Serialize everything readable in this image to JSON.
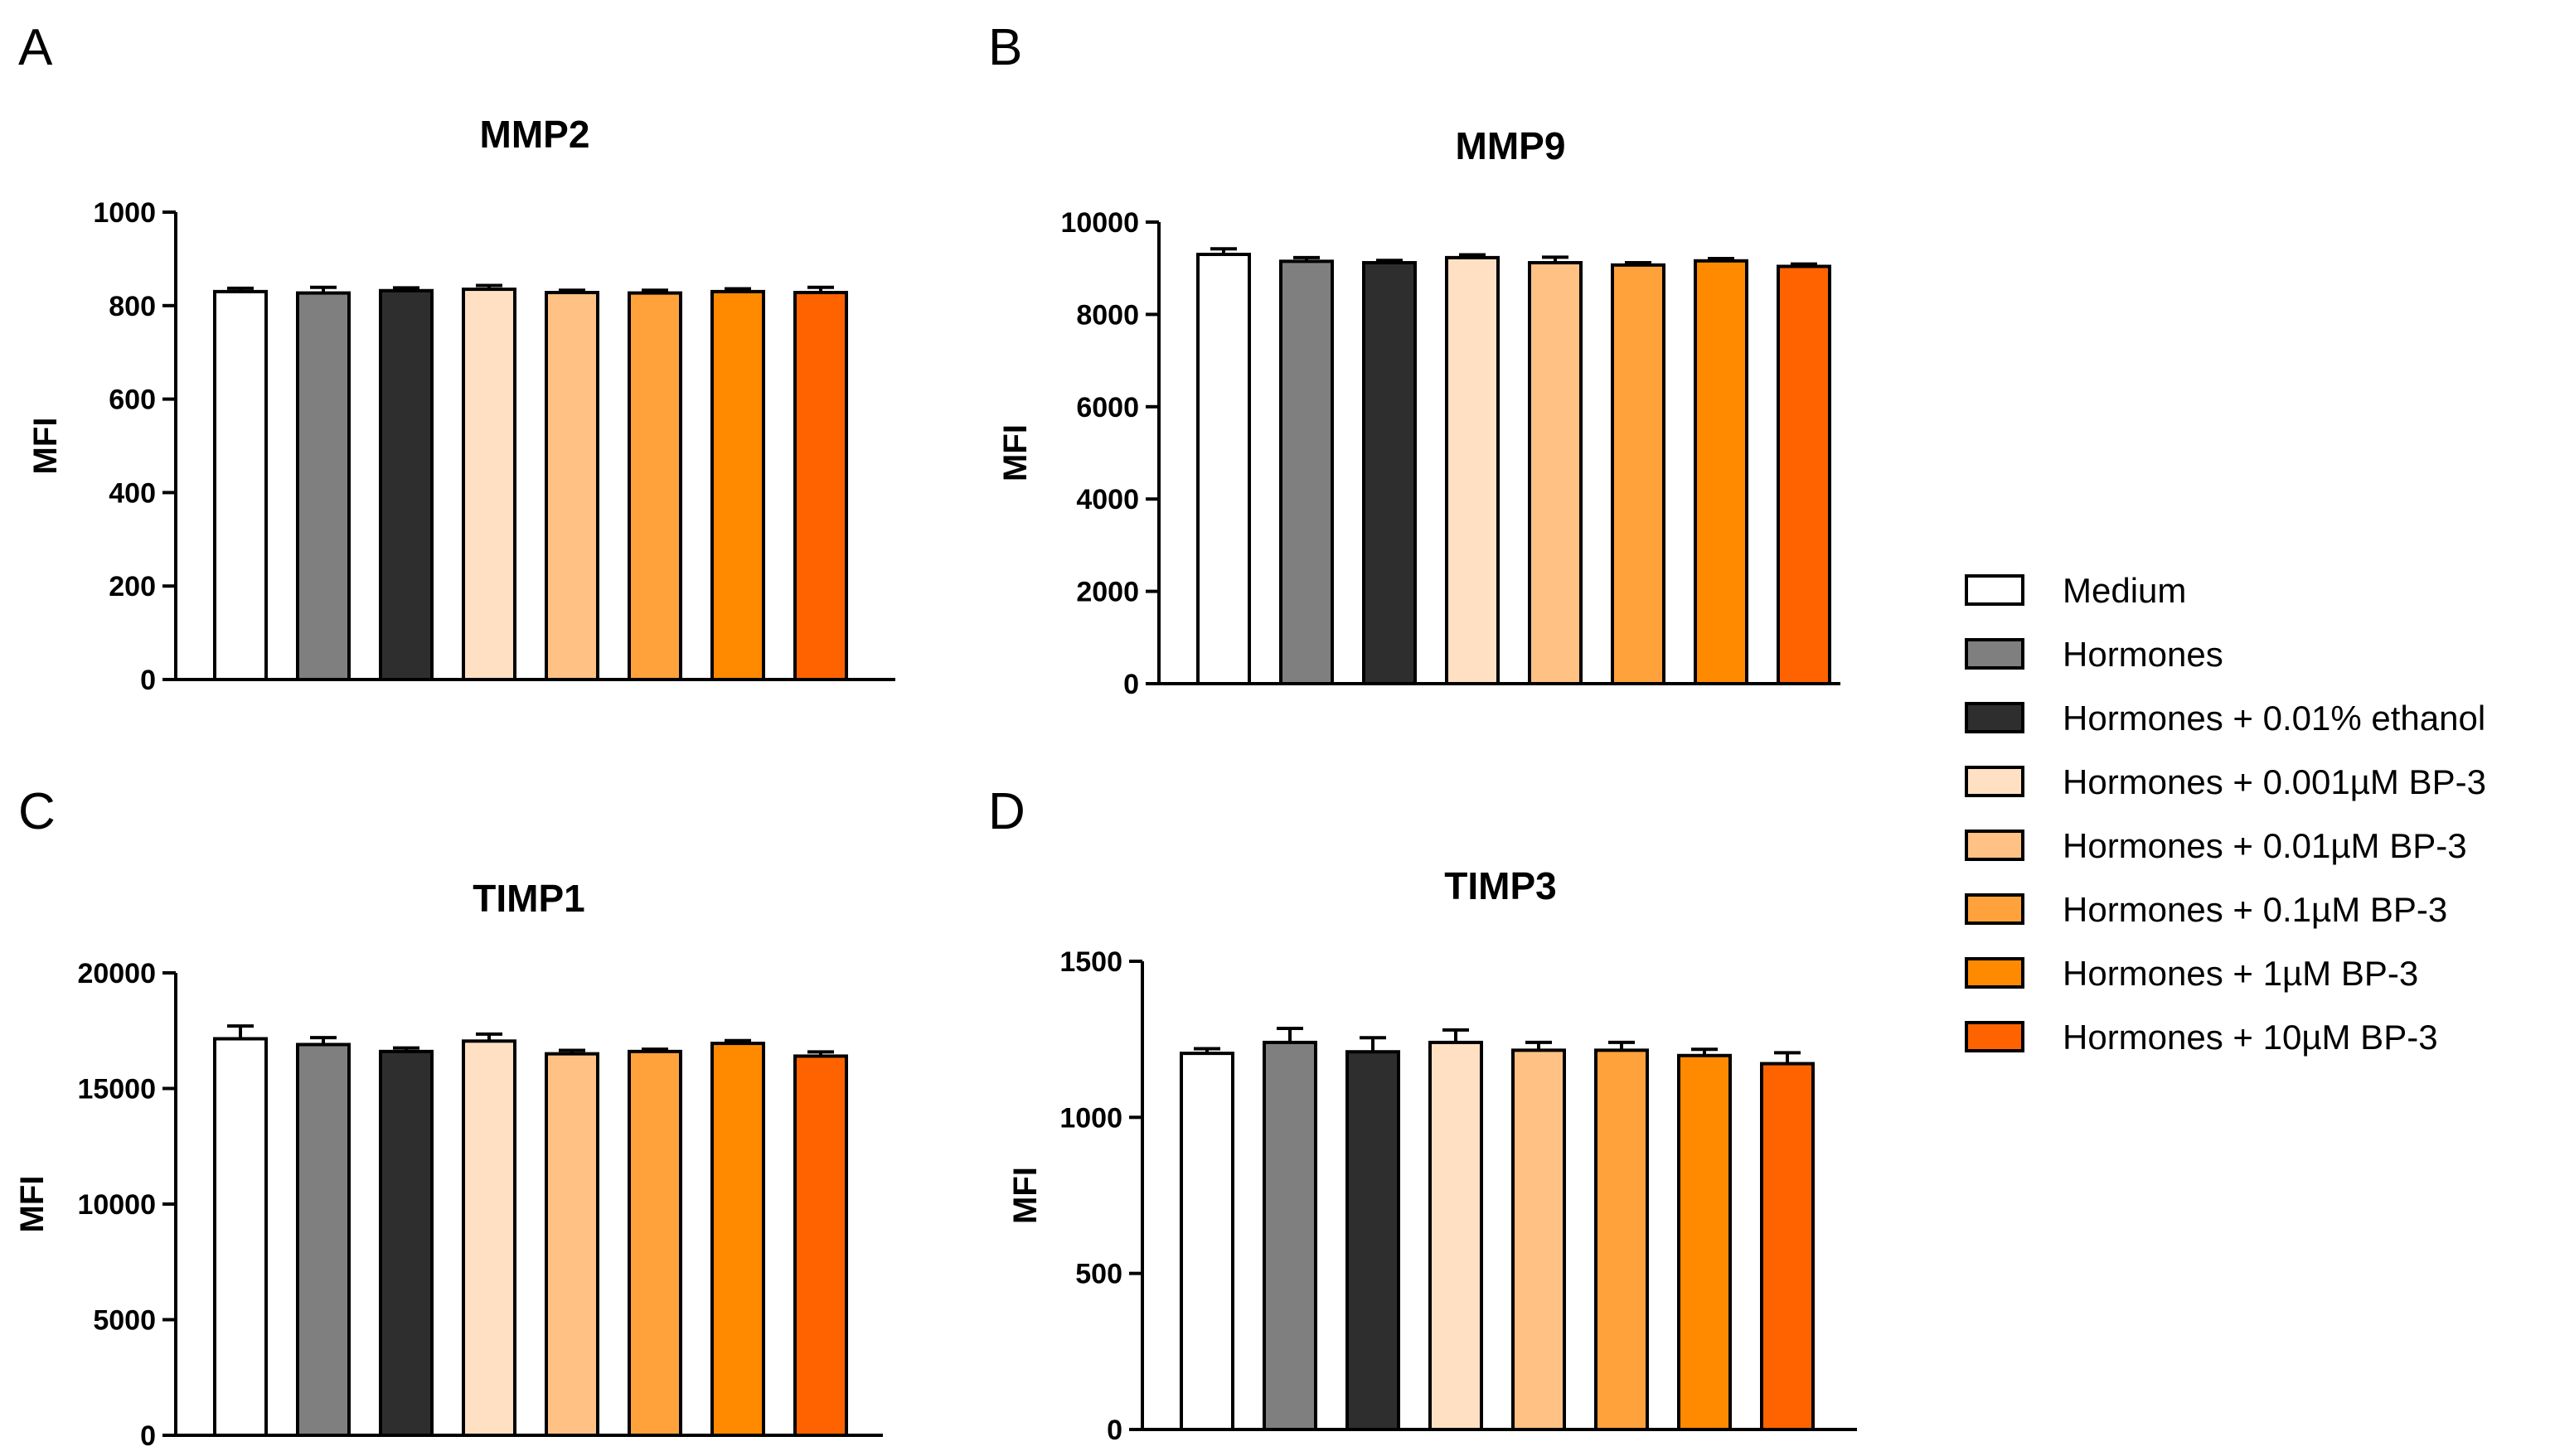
{
  "legend": {
    "series": [
      {
        "label": "Medium",
        "color": "#FFFFFF"
      },
      {
        "label": "Hormones",
        "color": "#7F7F7F"
      },
      {
        "label": "Hormones + 0.01% ethanol",
        "color": "#2E2E2E"
      },
      {
        "label": "Hormones + 0.001µM BP-3",
        "color": "#FFE0C2"
      },
      {
        "label": "Hormones + 0.01µM BP-3",
        "color": "#FFC184"
      },
      {
        "label": "Hormones + 0.1µM BP-3",
        "color": "#FFA23C"
      },
      {
        "label": "Hormones + 1µM BP-3",
        "color": "#FF8A00"
      },
      {
        "label": "Hormones + 10µM BP-3",
        "color": "#FF6300"
      }
    ]
  },
  "chart_data": [
    {
      "panel": "A",
      "type": "bar",
      "title": "MMP2",
      "ylabel": "MFI",
      "xlabel": "",
      "ylim": [
        0,
        1000
      ],
      "yticks": [
        0,
        200,
        400,
        600,
        800,
        1000
      ],
      "values": [
        830,
        827,
        832,
        835,
        828,
        827,
        830,
        828
      ],
      "errors": [
        7,
        12,
        6,
        8,
        5,
        6,
        6,
        11
      ]
    },
    {
      "panel": "B",
      "type": "bar",
      "title": "MMP9",
      "ylabel": "MFI",
      "xlabel": "",
      "ylim": [
        0,
        10000
      ],
      "yticks": [
        0,
        2000,
        4000,
        6000,
        8000,
        10000
      ],
      "values": [
        9300,
        9150,
        9120,
        9230,
        9120,
        9070,
        9160,
        9040
      ],
      "errors": [
        120,
        80,
        50,
        60,
        120,
        50,
        50,
        50
      ]
    },
    {
      "panel": "C",
      "type": "bar",
      "title": "TIMP1",
      "ylabel": "MFI",
      "xlabel": "",
      "ylim": [
        0,
        20000
      ],
      "yticks": [
        0,
        5000,
        10000,
        15000,
        20000
      ],
      "values": [
        17150,
        16900,
        16600,
        17050,
        16500,
        16600,
        16950,
        16400
      ],
      "errors": [
        550,
        300,
        150,
        300,
        150,
        100,
        120,
        180
      ]
    },
    {
      "panel": "D",
      "type": "bar",
      "title": "TIMP3",
      "ylabel": "MFI",
      "xlabel": "",
      "ylim": [
        0,
        1500
      ],
      "yticks": [
        0,
        500,
        1000,
        1500
      ],
      "values": [
        1205,
        1240,
        1210,
        1240,
        1215,
        1215,
        1198,
        1172
      ],
      "errors": [
        15,
        45,
        45,
        40,
        25,
        25,
        20,
        35
      ]
    }
  ]
}
